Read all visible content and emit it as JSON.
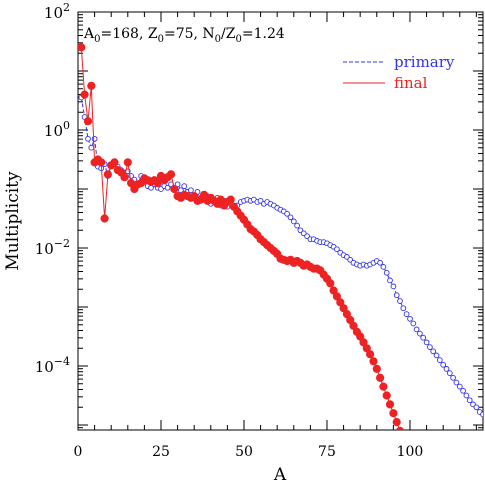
{
  "chart_data": {
    "type": "scatter",
    "xlabel": "A",
    "ylabel": "Multiplicity",
    "xlim": [
      0,
      122
    ],
    "ylim_log10": [
      -3,
      2
    ],
    "log_y": true,
    "grid": false,
    "legend_placement": "top-right",
    "x_ticks": [
      "0",
      "25",
      "50",
      "75",
      "100"
    ],
    "x_tick_values": [
      0,
      25,
      50,
      75,
      100
    ],
    "y_tick_exponents": [
      2,
      0,
      -2,
      -4
    ],
    "y_tick_base": "10",
    "y_tick_labels": [
      "2",
      "0",
      "−2",
      "−4"
    ],
    "annotation": {
      "a_label": "A",
      "a_sub": "0",
      "a_value": "=168, ",
      "z_label": "Z",
      "z_sub": "0",
      "z_value": "=75, ",
      "n_label": "N",
      "n_sub": "0",
      "slash": "/Z",
      "slash_sub": "0",
      "ratio_value": "=1.24"
    },
    "series": [
      {
        "name": "primary",
        "color": "#3333ee",
        "style": "dashed line with open circle markers",
        "x": [
          1,
          2,
          3,
          4,
          5,
          6,
          7,
          8,
          9,
          10,
          11,
          12,
          13,
          14,
          15,
          16,
          17,
          18,
          19,
          20,
          21,
          22,
          23,
          24,
          25,
          26,
          27,
          28,
          29,
          30,
          31,
          32,
          33,
          34,
          35,
          36,
          37,
          38,
          39,
          40,
          41,
          42,
          43,
          44,
          45,
          46,
          47,
          48,
          49,
          50,
          51,
          52,
          53,
          54,
          55,
          56,
          57,
          58,
          59,
          60,
          61,
          62,
          63,
          64,
          65,
          66,
          67,
          68,
          69,
          70,
          71,
          72,
          73,
          74,
          75,
          76,
          77,
          78,
          79,
          80,
          81,
          82,
          83,
          84,
          85,
          86,
          87,
          88,
          89,
          90,
          91,
          92,
          93,
          94,
          95,
          96,
          97,
          98,
          99,
          100,
          101,
          102,
          103,
          104,
          105,
          106,
          107,
          108,
          109,
          110,
          111,
          112,
          113,
          114,
          115,
          116,
          117,
          118,
          119,
          120,
          121,
          122
        ],
        "log10_y": [
          0.55,
          0.22,
          -0.15,
          -0.3,
          -0.15,
          -0.62,
          -0.65,
          -0.58,
          -0.78,
          -0.6,
          -0.55,
          -0.62,
          -0.68,
          -0.72,
          -0.7,
          -0.78,
          -0.84,
          -0.92,
          -0.78,
          -0.88,
          -0.95,
          -0.98,
          -0.92,
          -0.98,
          -1.0,
          -0.95,
          -0.98,
          -0.92,
          -0.98,
          -0.92,
          -1.02,
          -0.95,
          -1.05,
          -1.02,
          -1.12,
          -1.05,
          -1.18,
          -1.1,
          -1.12,
          -1.25,
          -1.18,
          -1.15,
          -1.28,
          -1.2,
          -1.3,
          -1.25,
          -1.3,
          -1.28,
          -1.22,
          -1.2,
          -1.18,
          -1.2,
          -1.18,
          -1.22,
          -1.2,
          -1.25,
          -1.22,
          -1.25,
          -1.28,
          -1.32,
          -1.35,
          -1.38,
          -1.42,
          -1.48,
          -1.55,
          -1.62,
          -1.7,
          -1.75,
          -1.8,
          -1.85,
          -1.85,
          -1.88,
          -1.9,
          -1.9,
          -1.92,
          -1.95,
          -1.98,
          -2.02,
          -2.08,
          -2.12,
          -2.15,
          -2.2,
          -2.25,
          -2.28,
          -2.3,
          -2.28,
          -2.3,
          -2.28,
          -2.25,
          -2.22,
          -2.25,
          -2.32,
          -2.42,
          -2.55,
          -2.65,
          -2.8,
          -2.9,
          -3.02,
          -3.12,
          -3.2,
          -3.28,
          -3.38,
          -3.45,
          -3.52,
          -3.6,
          -3.68,
          -3.75,
          -3.82,
          -3.9,
          -3.98,
          -4.05,
          -4.12,
          -4.2,
          -4.28,
          -4.35,
          -4.42,
          -4.5,
          -4.58,
          -4.65,
          -4.7,
          -4.78,
          -4.82
        ]
      },
      {
        "name": "final",
        "color": "#ee2222",
        "style": "solid line with filled circle markers",
        "x": [
          1,
          2,
          3,
          4,
          5,
          6,
          7,
          8,
          9,
          10,
          11,
          12,
          13,
          14,
          15,
          16,
          17,
          18,
          19,
          20,
          21,
          22,
          23,
          24,
          25,
          26,
          27,
          28,
          29,
          30,
          31,
          32,
          33,
          34,
          35,
          36,
          37,
          38,
          39,
          40,
          41,
          42,
          43,
          44,
          45,
          46,
          47,
          48,
          49,
          50,
          51,
          52,
          53,
          54,
          55,
          56,
          57,
          58,
          59,
          60,
          61,
          62,
          63,
          64,
          65,
          66,
          67,
          68,
          69,
          70,
          71,
          72,
          73,
          74,
          75,
          76,
          77,
          78,
          79,
          80,
          81,
          82,
          83,
          84,
          85,
          86,
          87,
          88,
          89,
          90,
          91,
          92,
          93,
          94,
          95,
          96,
          97,
          98,
          99
        ],
        "log10_y": [
          1.4,
          0.6,
          0.15,
          0.75,
          -0.55,
          -0.5,
          -0.55,
          -1.5,
          -0.75,
          -0.6,
          -0.55,
          -0.68,
          -0.72,
          -0.8,
          -0.55,
          -0.9,
          -1.0,
          -0.92,
          -0.9,
          -0.82,
          -0.85,
          -0.88,
          -0.85,
          -0.9,
          -0.78,
          -0.85,
          -0.8,
          -0.75,
          -1.0,
          -1.12,
          -1.15,
          -1.1,
          -1.12,
          -1.15,
          -1.12,
          -1.2,
          -1.18,
          -1.1,
          -1.2,
          -1.15,
          -1.2,
          -1.25,
          -1.18,
          -1.28,
          -1.22,
          -1.18,
          -1.3,
          -1.38,
          -1.45,
          -1.52,
          -1.6,
          -1.68,
          -1.72,
          -1.78,
          -1.85,
          -1.9,
          -1.95,
          -2.0,
          -2.05,
          -2.1,
          -2.18,
          -2.2,
          -2.22,
          -2.2,
          -2.25,
          -2.22,
          -2.25,
          -2.3,
          -2.28,
          -2.32,
          -2.35,
          -2.35,
          -2.38,
          -2.45,
          -2.52,
          -2.6,
          -2.72,
          -2.82,
          -2.92,
          -3.02,
          -3.12,
          -3.22,
          -3.32,
          -3.42,
          -3.5,
          -3.6,
          -3.7,
          -3.8,
          -3.92,
          -4.05,
          -4.2,
          -4.35,
          -4.5,
          -4.65,
          -4.8,
          -4.95,
          -5.1,
          -5.25,
          -5.4
        ]
      }
    ]
  }
}
